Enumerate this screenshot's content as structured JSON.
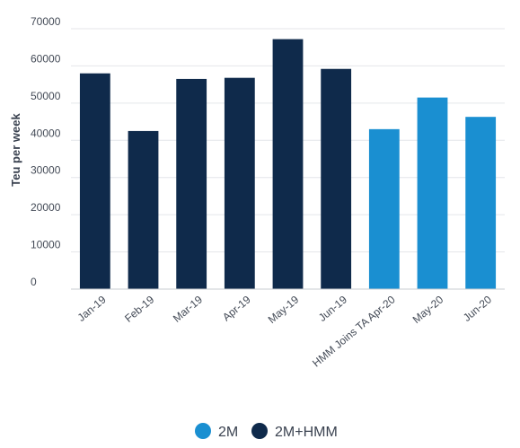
{
  "chart_data": {
    "type": "bar",
    "title": "",
    "xlabel": "",
    "ylabel": "Teu per week",
    "ylim": [
      0,
      70000
    ],
    "yticks": [
      0,
      10000,
      20000,
      30000,
      40000,
      50000,
      60000,
      70000
    ],
    "grid": true,
    "legend_position": "bottom-center",
    "categories": [
      "Jan-19",
      "Feb-19",
      "Mar-19",
      "Apr-19",
      "May-19",
      "Jun-19",
      "HMM Joins TA Apr-20",
      "May-20",
      "Jun-20"
    ],
    "values": [
      58000,
      42500,
      56500,
      56800,
      67200,
      59200,
      43000,
      51500,
      46300
    ],
    "bar_series": [
      "2M+HMM",
      "2M+HMM",
      "2M+HMM",
      "2M+HMM",
      "2M+HMM",
      "2M+HMM",
      "2M",
      "2M",
      "2M"
    ],
    "legend": [
      {
        "name": "2M",
        "color": "#1a8fd1"
      },
      {
        "name": "2M+HMM",
        "color": "#0f2a4b"
      }
    ]
  }
}
